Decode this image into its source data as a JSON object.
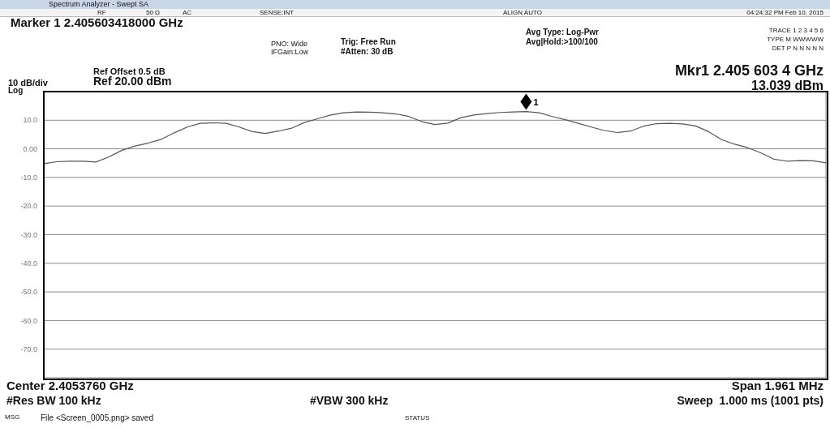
{
  "chart_data": {
    "type": "line",
    "categories": [
      null,
      null,
      null,
      null,
      null,
      null,
      null,
      null,
      null,
      null,
      null,
      null,
      null,
      null,
      null,
      null,
      null,
      null,
      null,
      null,
      null,
      null,
      null,
      null,
      null,
      null,
      null,
      null,
      null,
      null,
      null,
      null,
      null,
      null,
      null,
      null,
      null,
      null,
      null,
      null,
      null,
      null,
      null,
      null,
      null,
      null,
      null,
      null,
      null,
      null,
      null,
      null,
      null,
      null,
      null,
      null,
      null,
      null,
      null,
      null,
      null
    ],
    "series": [
      {
        "color": "#555555",
        "values": [
          -5.2,
          -4.5,
          -4.3,
          -4.3,
          -4.6,
          -2.8,
          -0.5,
          1.0,
          2.0,
          3.3,
          5.6,
          7.6,
          8.9,
          9.1,
          8.9,
          7.6,
          6.0,
          5.4,
          6.2,
          7.2,
          9.2,
          10.5,
          11.8,
          12.6,
          12.9,
          12.8,
          12.6,
          12.2,
          11.3,
          9.5,
          8.5,
          9.0,
          10.9,
          11.8,
          12.3,
          12.7,
          12.9,
          13.0,
          12.6,
          11.3,
          10.2,
          8.9,
          7.6,
          6.4,
          5.7,
          6.2,
          7.9,
          8.8,
          8.9,
          8.7,
          8.0,
          6.0,
          3.2,
          1.6,
          0.4,
          -1.4,
          -3.6,
          -4.3,
          -4.1,
          -4.2,
          -4.9
        ]
      }
    ],
    "ylim": [
      -80,
      20
    ],
    "yticks": [
      {
        "value": 20,
        "label": null
      },
      {
        "value": 10,
        "label": "10.0"
      },
      {
        "value": 0,
        "label": "0.00"
      },
      {
        "value": -10,
        "label": "-10.0"
      },
      {
        "value": -20,
        "label": "-20.0"
      },
      {
        "value": -30,
        "label": "-30.0"
      },
      {
        "value": -40,
        "label": "-40.0"
      },
      {
        "value": -50,
        "label": "-50.0"
      },
      {
        "value": -60,
        "label": "-60.0"
      },
      {
        "value": -70,
        "label": "-70.0"
      },
      {
        "value": -80,
        "label": null
      }
    ],
    "grid": true,
    "legend": false,
    "marker": "none",
    "line_style": "solid",
    "tick_labels": "y",
    "annotations": [
      {
        "text": "1",
        "y": 13.039
      },
      "Spectrum Analyzer - Swept SA",
      "RF",
      "50 Ω",
      "AC",
      "SENSE:INT",
      "ALIGN AUTO",
      "04:24:32 PM Feb 10, 2015",
      "Marker 1 2.405603418000 GHz",
      "PNO: Wide",
      "IFGain:Low",
      "Trig: Free Run",
      "#Atten: 30 dB",
      "Avg Type: Log-Pwr",
      "Avg|Hold:>100/100",
      "TRACE 1 2 3 4 5 6",
      "TYPE M WWWWW",
      "DET P N N N N N",
      "Ref Offset 0.5 dB",
      "10 dB/div",
      "Ref 20.00 dBm",
      "Log",
      "Mkr1 2.405 603 4 GHz",
      "13.039 dBm",
      "Center 2.4053760 GHz",
      "#Res BW 100 kHz",
      "#VBW 300 kHz",
      "Span 1.961 MHz",
      "Sweep  1.000 ms (1001 pts)",
      "MSG",
      "File <Screen_0005.png> saved",
      "STATUS"
    ]
  }
}
